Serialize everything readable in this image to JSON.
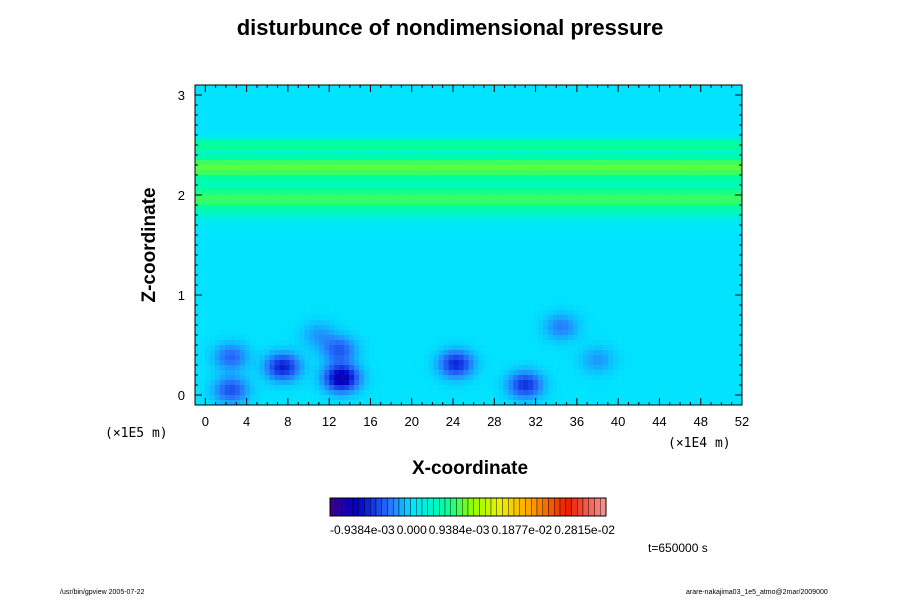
{
  "chart_data": {
    "type": "heatmap",
    "title": "disturbunce of nondimensional pressure",
    "xlabel": "X-coordinate",
    "ylabel": "Z-coordinate",
    "x_scale_label": "(×1E4 m)",
    "z_scale_label": "(×1E5 m)",
    "xlim": [
      -1,
      52
    ],
    "ylim": [
      -0.1,
      3.1
    ],
    "x_ticks": [
      "0",
      "4",
      "8",
      "12",
      "16",
      "20",
      "24",
      "28",
      "32",
      "36",
      "40",
      "44",
      "48",
      "52"
    ],
    "y_ticks": [
      "0",
      "1",
      "2",
      "3"
    ],
    "background_level": 0.0,
    "bands": [
      {
        "z_center": 1.96,
        "z_halfwidth": 0.16,
        "value": 0.00075
      },
      {
        "z_center": 2.28,
        "z_halfwidth": 0.13,
        "value": 0.00085
      },
      {
        "z_center": 2.5,
        "z_halfwidth": 0.06,
        "value": 0.0006
      }
    ],
    "anomalies": [
      {
        "x": 2.5,
        "z": 0.38,
        "value": -0.00045
      },
      {
        "x": 2.5,
        "z": 0.05,
        "value": -0.00055
      },
      {
        "x": 7.5,
        "z": 0.28,
        "value": -0.0008
      },
      {
        "x": 13.2,
        "z": 0.17,
        "value": -0.0011
      },
      {
        "x": 13.0,
        "z": 0.45,
        "value": -0.0005
      },
      {
        "x": 24.3,
        "z": 0.31,
        "value": -0.00075
      },
      {
        "x": 31.0,
        "z": 0.1,
        "value": -0.0007
      },
      {
        "x": 34.5,
        "z": 0.68,
        "value": -0.00035
      },
      {
        "x": 38.0,
        "z": 0.35,
        "value": -0.00025
      },
      {
        "x": 11.0,
        "z": 0.6,
        "value": -0.00025
      }
    ],
    "colorbar": {
      "tick_labels": [
        "-0.9384e-03",
        "0.000",
        "0.9384e-03",
        "0.1877e-02",
        "0.2815e-02"
      ],
      "tick_values": [
        -0.0009384,
        0.0,
        0.0009384,
        0.001877,
        0.002815
      ],
      "range": [
        -0.0014,
        0.0033
      ]
    },
    "annotation": "t=650000 s"
  },
  "footer": {
    "left": "/usr/bin/gpview 2005-07-22",
    "right": "arare-nakajima03_1e5_atmo@2mar/2009000"
  }
}
